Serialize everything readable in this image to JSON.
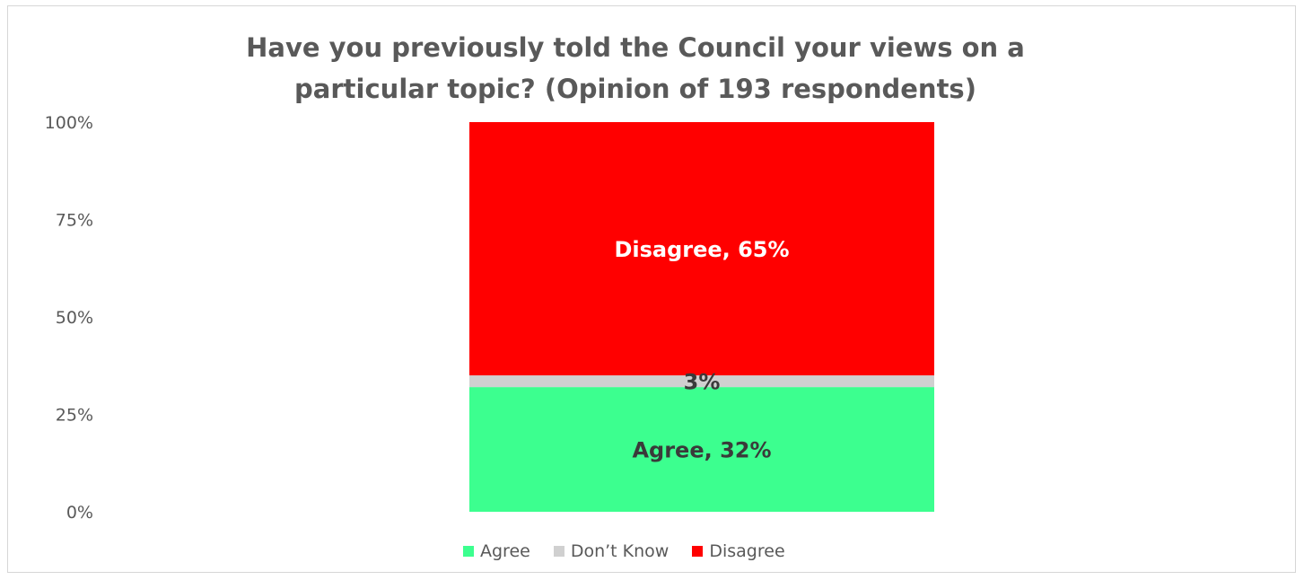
{
  "chart_data": {
    "type": "bar",
    "stacked": true,
    "title": "Have you previously told the Council your views on a particular topic?  (Opinion of 193 respondents)",
    "title_lines": [
      "Have you previously told the Council your views on a",
      "particular topic?  (Opinion of 193 respondents)"
    ],
    "xlabel": "",
    "ylabel": "",
    "ylim": [
      0,
      100
    ],
    "y_ticks": [
      "0%",
      "25%",
      "50%",
      "75%",
      "100%"
    ],
    "y_tick_values": [
      0,
      25,
      50,
      75,
      100
    ],
    "categories": [
      ""
    ],
    "series": [
      {
        "name": "Agree",
        "values": [
          32
        ],
        "color": "#3cff8f",
        "label": "Agree, 32%",
        "label_color": "#3a3a3a"
      },
      {
        "name": "Don't Know",
        "values": [
          3
        ],
        "color": "#d0d0d0",
        "label": "3%",
        "label_color": "#3a3a3a"
      },
      {
        "name": "Disagree",
        "values": [
          65
        ],
        "color": "#ff0000",
        "label": "Disagree, 65%",
        "label_color": "#ffffff"
      }
    ],
    "legend": {
      "position": "bottom",
      "entries": [
        "Agree",
        "Don’t Know",
        "Disagree"
      ]
    },
    "grid": false
  }
}
